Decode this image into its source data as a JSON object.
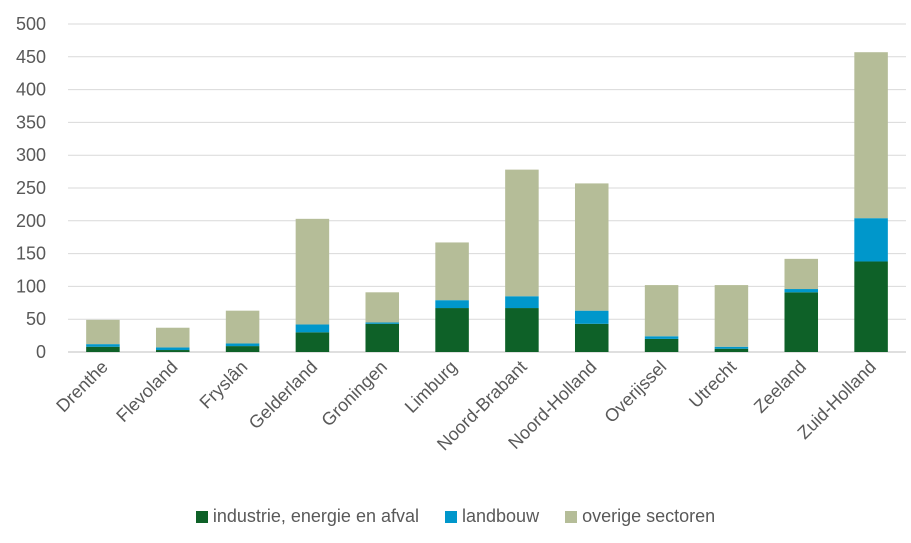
{
  "chart_data": {
    "type": "bar",
    "stacked": true,
    "categories": [
      "Drenthe",
      "Flevoland",
      "Fryslân",
      "Gelderland",
      "Groningen",
      "Limburg",
      "Noord-Brabant",
      "Noord-Holland",
      "Overijssel",
      "Utrecht",
      "Zeeland",
      "Zuid-Holland"
    ],
    "series": [
      {
        "name": "industrie, energie en afval",
        "color": "#0e6128",
        "values": [
          8,
          3,
          9,
          30,
          43,
          67,
          67,
          43,
          20,
          5,
          91,
          138
        ]
      },
      {
        "name": "landbouw",
        "color": "#0097cb",
        "values": [
          4,
          4,
          4,
          12,
          2,
          12,
          18,
          20,
          4,
          3,
          5,
          66
        ]
      },
      {
        "name": "overige sectoren",
        "color": "#b5bd98",
        "values": [
          37,
          30,
          50,
          161,
          46,
          88,
          193,
          194,
          78,
          94,
          46,
          253
        ]
      }
    ],
    "ylim": [
      0,
      500
    ],
    "yticks": [
      0,
      50,
      100,
      150,
      200,
      250,
      300,
      350,
      400,
      450,
      500
    ],
    "grid": true,
    "legend_position": "bottom"
  }
}
